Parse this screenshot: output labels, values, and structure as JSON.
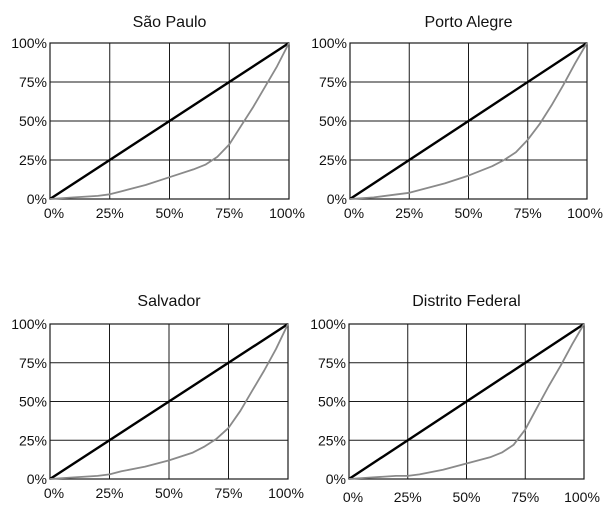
{
  "colors": {
    "background": "#ffffff",
    "frame": "#1a1a1a",
    "grid": "#1a1a1a",
    "equality_line": "#000000",
    "lorenz_curve": "#8a8a8a"
  },
  "chart_data": [
    {
      "type": "line",
      "title": "São Paulo",
      "xlabel": "",
      "ylabel": "",
      "xlim": [
        0,
        100
      ],
      "ylim": [
        0,
        100
      ],
      "grid": true,
      "x_ticks": [
        "0%",
        "25%",
        "50%",
        "75%",
        "100%"
      ],
      "y_ticks": [
        "0%",
        "25%",
        "50%",
        "75%",
        "100%"
      ],
      "series": [
        {
          "color": "#000000",
          "x": [
            0,
            100
          ],
          "y": [
            0,
            100
          ]
        },
        {
          "color": "#8a8a8a",
          "x": [
            0,
            10,
            20,
            25,
            30,
            40,
            50,
            60,
            65,
            70,
            75,
            80,
            85,
            90,
            95,
            100
          ],
          "y": [
            0,
            1,
            2,
            3,
            5,
            9,
            14,
            19,
            22,
            27,
            35,
            47,
            59,
            72,
            85,
            100
          ]
        }
      ]
    },
    {
      "type": "line",
      "title": "Porto Alegre",
      "xlabel": "",
      "ylabel": "",
      "xlim": [
        0,
        100
      ],
      "ylim": [
        0,
        100
      ],
      "grid": true,
      "x_ticks": [
        "0%",
        "25%",
        "50%",
        "75%",
        "100%"
      ],
      "y_ticks": [
        "0%",
        "25%",
        "50%",
        "75%",
        "100%"
      ],
      "series": [
        {
          "color": "#000000",
          "x": [
            0,
            100
          ],
          "y": [
            0,
            100
          ]
        },
        {
          "color": "#8a8a8a",
          "x": [
            0,
            10,
            20,
            25,
            30,
            40,
            50,
            60,
            65,
            70,
            75,
            80,
            85,
            90,
            95,
            100
          ],
          "y": [
            0,
            1,
            3,
            4,
            6,
            10,
            15,
            21,
            25,
            30,
            38,
            48,
            60,
            73,
            87,
            100
          ]
        }
      ]
    },
    {
      "type": "line",
      "title": "Salvador",
      "xlabel": "",
      "ylabel": "",
      "xlim": [
        0,
        100
      ],
      "ylim": [
        0,
        100
      ],
      "grid": true,
      "x_ticks": [
        "0%",
        "25%",
        "50%",
        "75%",
        "100%"
      ],
      "y_ticks": [
        "0%",
        "25%",
        "50%",
        "75%",
        "100%"
      ],
      "series": [
        {
          "color": "#000000",
          "x": [
            0,
            100
          ],
          "y": [
            0,
            100
          ]
        },
        {
          "color": "#8a8a8a",
          "x": [
            0,
            10,
            20,
            25,
            30,
            40,
            50,
            60,
            65,
            70,
            75,
            80,
            85,
            90,
            95,
            100
          ],
          "y": [
            0,
            1,
            2,
            3,
            5,
            8,
            12,
            17,
            21,
            26,
            33,
            44,
            57,
            70,
            84,
            100
          ]
        }
      ]
    },
    {
      "type": "line",
      "title": "Distrito Federal",
      "xlabel": "",
      "ylabel": "",
      "xlim": [
        0,
        100
      ],
      "ylim": [
        0,
        100
      ],
      "grid": true,
      "x_ticks": [
        "0%",
        "25%",
        "50%",
        "75%",
        "100%"
      ],
      "y_ticks": [
        "0%",
        "25%",
        "50%",
        "75%",
        "100%"
      ],
      "series": [
        {
          "color": "#000000",
          "x": [
            0,
            100
          ],
          "y": [
            0,
            100
          ]
        },
        {
          "color": "#8a8a8a",
          "x": [
            0,
            10,
            20,
            25,
            30,
            40,
            50,
            60,
            65,
            70,
            75,
            80,
            85,
            90,
            95,
            100
          ],
          "y": [
            0,
            1,
            2,
            2,
            3,
            6,
            10,
            14,
            17,
            22,
            32,
            46,
            60,
            73,
            87,
            100
          ]
        }
      ]
    }
  ]
}
